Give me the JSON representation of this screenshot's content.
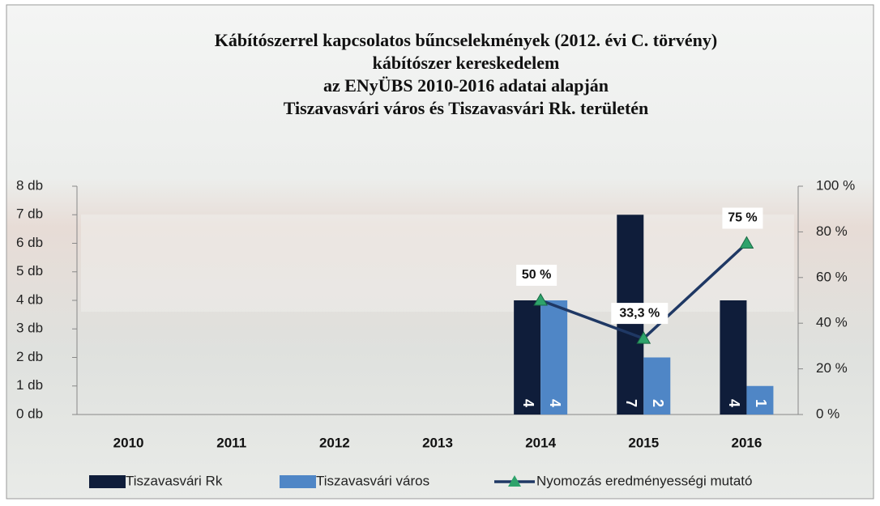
{
  "chart_data": {
    "type": "bar",
    "title": [
      "Kábítószerrel kapcsolatos bűncselekmények (2012. évi C. törvény)",
      "kábítószer kereskedelem",
      "az ENyÜBS  2010-2016 adatai alapján",
      "Tiszavasvári város és Tiszavasvári Rk. területén"
    ],
    "categories": [
      "2010",
      "2011",
      "2012",
      "2013",
      "2014",
      "2015",
      "2016"
    ],
    "series": [
      {
        "name": "Tiszavasvári Rk",
        "color": "#0f1d3a",
        "type": "bar",
        "values": [
          null,
          null,
          null,
          null,
          4,
          7,
          4
        ]
      },
      {
        "name": "Tiszavasvári város",
        "color": "#4f86c6",
        "type": "bar",
        "values": [
          null,
          null,
          null,
          null,
          4,
          2,
          1
        ]
      },
      {
        "name": "Nyomozás eredményességi mutató",
        "color": "#1f3864",
        "marker_color": "#2ea36b",
        "type": "line",
        "axis": "y2",
        "values": [
          null,
          null,
          null,
          null,
          50,
          33.3,
          75
        ],
        "value_labels": [
          null,
          null,
          null,
          null,
          "50 %",
          "33,3 %",
          "75 %"
        ]
      }
    ],
    "ylim": [
      0,
      8
    ],
    "yticks": [
      {
        "value": 0,
        "label": "0 db"
      },
      {
        "value": 1,
        "label": "1 db"
      },
      {
        "value": 2,
        "label": "2 db"
      },
      {
        "value": 3,
        "label": "3 db"
      },
      {
        "value": 4,
        "label": "4 db"
      },
      {
        "value": 5,
        "label": "5 db"
      },
      {
        "value": 6,
        "label": "6 db"
      },
      {
        "value": 7,
        "label": "7 db"
      },
      {
        "value": 8,
        "label": "8 db"
      }
    ],
    "y2lim": [
      0,
      100
    ],
    "y2ticks": [
      {
        "value": 0,
        "label": "0 %"
      },
      {
        "value": 20,
        "label": "20 %"
      },
      {
        "value": 40,
        "label": "40 %"
      },
      {
        "value": 60,
        "label": "60 %"
      },
      {
        "value": 80,
        "label": "80 %"
      },
      {
        "value": 100,
        "label": "100 %"
      }
    ],
    "legend": "bottom",
    "bar_value_labels": true
  }
}
